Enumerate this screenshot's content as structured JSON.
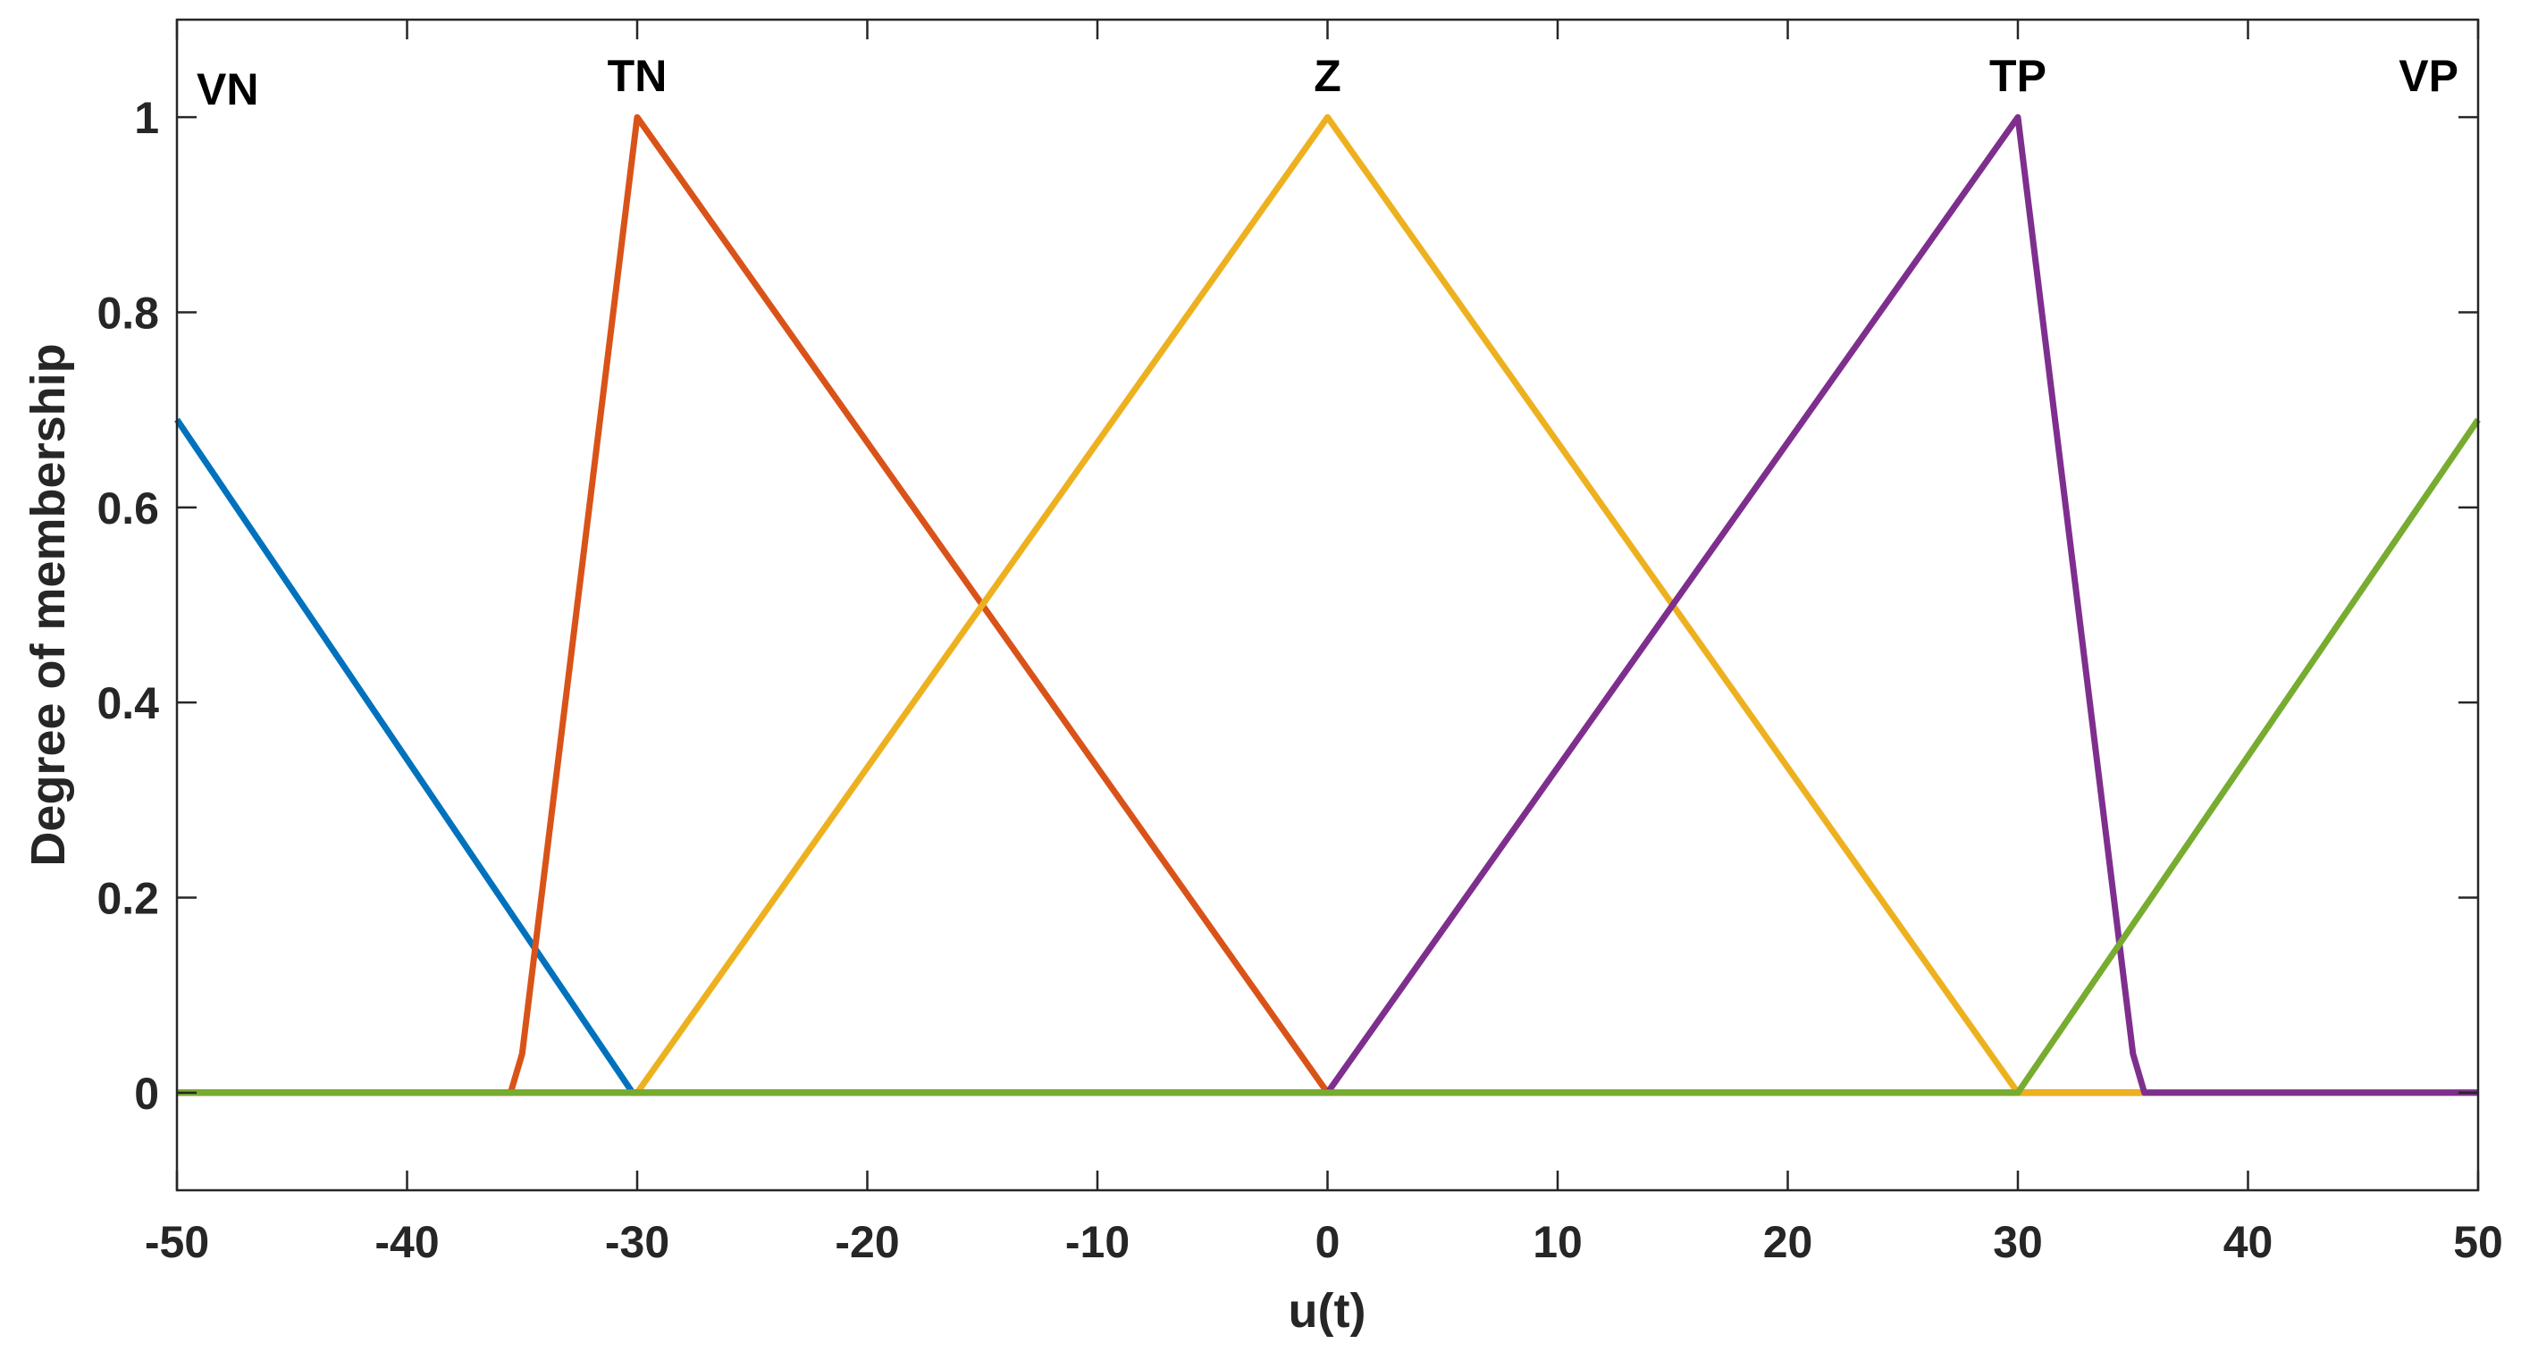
{
  "chart_data": {
    "type": "line",
    "xlabel": "u(t)",
    "ylabel": "Degree of membership",
    "xlim": [
      -50,
      50
    ],
    "ylim": [
      -0.1,
      1.1
    ],
    "xticks": [
      -50,
      -40,
      -30,
      -20,
      -10,
      0,
      10,
      20,
      30,
      40,
      50
    ],
    "yticks": [
      0,
      0.2,
      0.4,
      0.6,
      0.8,
      1
    ],
    "grid": false,
    "series": [
      {
        "name": "VN",
        "color": "#0072BD",
        "x": [
          -50,
          -30.2,
          50
        ],
        "y": [
          0.69,
          0,
          0
        ]
      },
      {
        "name": "TN",
        "color": "#D95319",
        "x": [
          -50,
          -35.5,
          -35,
          -30,
          0,
          50
        ],
        "y": [
          0,
          0,
          0.04,
          1,
          0,
          0
        ]
      },
      {
        "name": "Z",
        "color": "#EDB120",
        "x": [
          -50,
          -30,
          0,
          30,
          50
        ],
        "y": [
          0,
          0,
          1,
          0,
          0
        ]
      },
      {
        "name": "TP",
        "color": "#7E2F8E",
        "x": [
          -50,
          0,
          30,
          35,
          35.5,
          50
        ],
        "y": [
          0,
          0,
          1,
          0.04,
          0,
          0
        ]
      },
      {
        "name": "VP",
        "color": "#77AC30",
        "x": [
          -50,
          30,
          50
        ],
        "y": [
          0,
          0,
          0.69
        ]
      }
    ]
  }
}
